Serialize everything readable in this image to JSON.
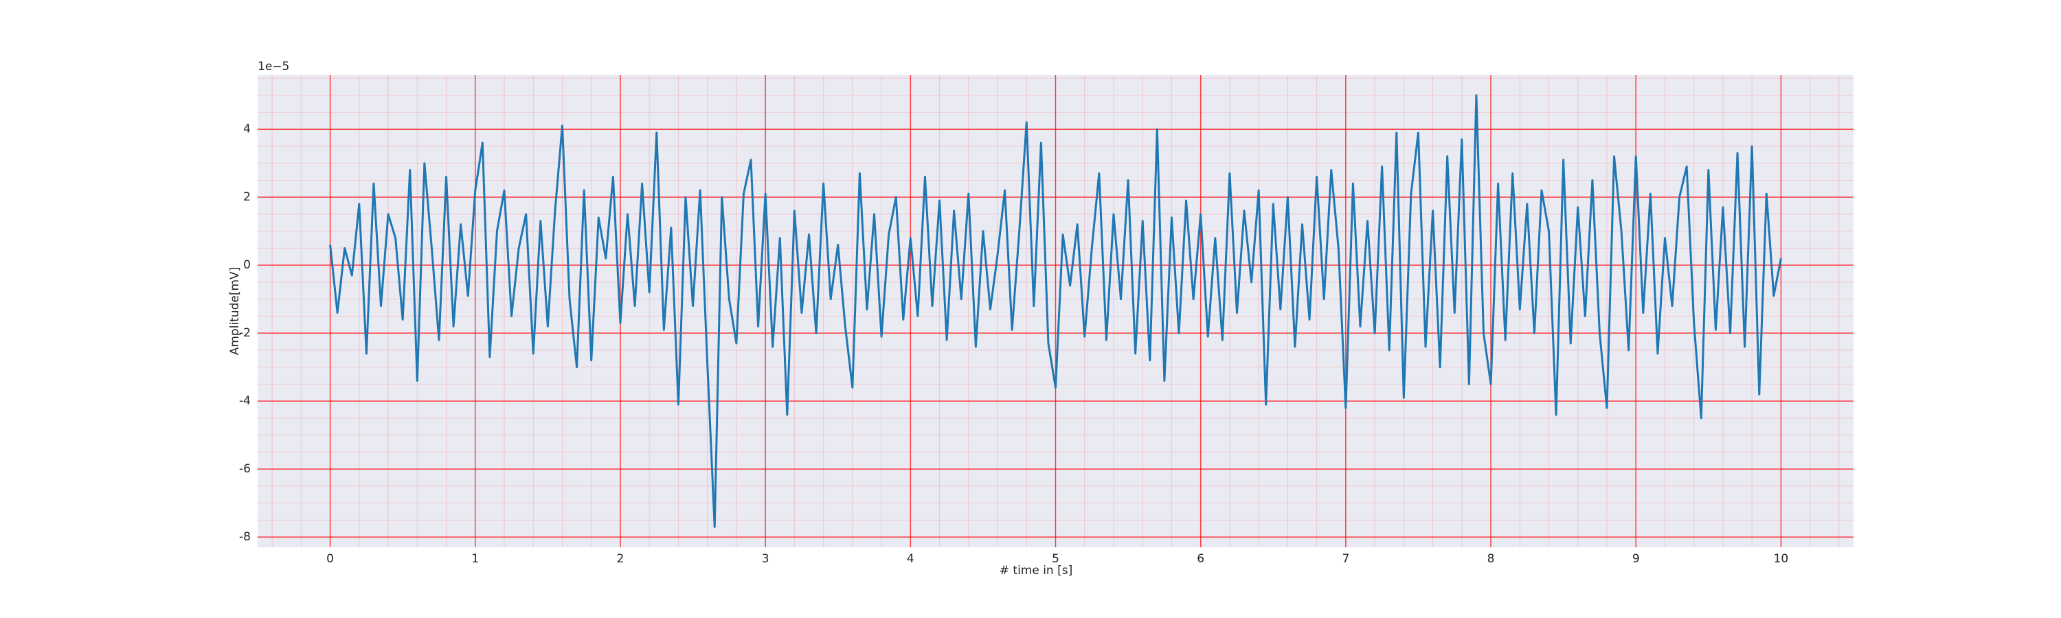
{
  "chart_data": {
    "type": "line",
    "x_label": "# time in [s]",
    "y_label": "Amplitude[mV]",
    "y_offset_label": "1e−5",
    "xlim": [
      -0.5,
      10.5
    ],
    "ylim": [
      -8.3,
      5.6
    ],
    "xticks": [
      0,
      1,
      2,
      3,
      4,
      5,
      6,
      7,
      8,
      9,
      10
    ],
    "yticks": [
      -8,
      -6,
      -4,
      -2,
      0,
      2,
      4
    ],
    "grid": true,
    "minor_grid": true,
    "grid_color": "#ff0000",
    "background": "#eaeaf2",
    "x": [
      0,
      0.05,
      0.1,
      0.15,
      0.2,
      0.25,
      0.3,
      0.35,
      0.4,
      0.45,
      0.5,
      0.55,
      0.6,
      0.65,
      0.7,
      0.75,
      0.8,
      0.85,
      0.9,
      0.95,
      1,
      1.05,
      1.1,
      1.15,
      1.2,
      1.25,
      1.3,
      1.35,
      1.4,
      1.45,
      1.5,
      1.55,
      1.6,
      1.65,
      1.7,
      1.75,
      1.8,
      1.85,
      1.9,
      1.95,
      2,
      2.05,
      2.1,
      2.15,
      2.2,
      2.25,
      2.3,
      2.35,
      2.4,
      2.45,
      2.5,
      2.55,
      2.6,
      2.65,
      2.7,
      2.75,
      2.8,
      2.85,
      2.9,
      2.95,
      3,
      3.05,
      3.1,
      3.15,
      3.2,
      3.25,
      3.3,
      3.35,
      3.4,
      3.45,
      3.5,
      3.55,
      3.6,
      3.65,
      3.7,
      3.75,
      3.8,
      3.85,
      3.9,
      3.95,
      4,
      4.05,
      4.1,
      4.15,
      4.2,
      4.25,
      4.3,
      4.35,
      4.4,
      4.45,
      4.5,
      4.55,
      4.6,
      4.65,
      4.7,
      4.75,
      4.8,
      4.85,
      4.9,
      4.95,
      5,
      5.05,
      5.1,
      5.15,
      5.2,
      5.25,
      5.3,
      5.35,
      5.4,
      5.45,
      5.5,
      5.55,
      5.6,
      5.65,
      5.7,
      5.75,
      5.8,
      5.85,
      5.9,
      5.95,
      6,
      6.05,
      6.1,
      6.15,
      6.2,
      6.25,
      6.3,
      6.35,
      6.4,
      6.45,
      6.5,
      6.55,
      6.6,
      6.65,
      6.7,
      6.75,
      6.8,
      6.85,
      6.9,
      6.95,
      7,
      7.05,
      7.1,
      7.15,
      7.2,
      7.25,
      7.3,
      7.35,
      7.4,
      7.45,
      7.5,
      7.55,
      7.6,
      7.65,
      7.7,
      7.75,
      7.8,
      7.85,
      7.9,
      7.95,
      8,
      8.05,
      8.1,
      8.15,
      8.2,
      8.25,
      8.3,
      8.35,
      8.4,
      8.45,
      8.5,
      8.55,
      8.6,
      8.65,
      8.7,
      8.75,
      8.8,
      8.85,
      8.9,
      8.95,
      9,
      9.05,
      9.1,
      9.15,
      9.2,
      9.25,
      9.3,
      9.35,
      9.4,
      9.45,
      9.5,
      9.55,
      9.6,
      9.65,
      9.7,
      9.75,
      9.8,
      9.85,
      9.9,
      9.95,
      10
    ],
    "series": [
      {
        "color": "#1f77b4",
        "values": [
          0.6,
          -1.4,
          0.5,
          -0.3,
          1.8,
          -2.6,
          2.4,
          -1.2,
          1.5,
          0.8,
          -1.6,
          2.8,
          -3.4,
          3.0,
          0.5,
          -2.2,
          2.6,
          -1.8,
          1.2,
          -0.9,
          2.2,
          3.6,
          -2.7,
          1.0,
          2.2,
          -1.5,
          0.5,
          1.5,
          -2.6,
          1.3,
          -1.8,
          1.6,
          4.1,
          -1.0,
          -3.0,
          2.2,
          -2.8,
          1.4,
          0.2,
          2.6,
          -1.7,
          1.5,
          -1.2,
          2.4,
          -0.8,
          3.9,
          -1.9,
          1.1,
          -4.1,
          2.0,
          -1.2,
          2.2,
          -2.9,
          -7.7,
          2.0,
          -1.0,
          -2.3,
          2.1,
          3.1,
          -1.8,
          2.1,
          -2.4,
          0.8,
          -4.4,
          1.6,
          -1.4,
          0.9,
          -2.0,
          2.4,
          -1.0,
          0.6,
          -1.8,
          -3.6,
          2.7,
          -1.3,
          1.5,
          -2.1,
          0.9,
          2.0,
          -1.6,
          0.8,
          -1.5,
          2.6,
          -1.2,
          1.9,
          -2.2,
          1.6,
          -1.0,
          2.1,
          -2.4,
          1.0,
          -1.3,
          0.3,
          2.2,
          -1.9,
          1.0,
          4.2,
          -1.2,
          3.6,
          -2.3,
          -3.6,
          0.9,
          -0.6,
          1.2,
          -2.1,
          0.5,
          2.7,
          -2.2,
          1.5,
          -1.0,
          2.5,
          -2.6,
          1.3,
          -2.8,
          4.0,
          -3.4,
          1.4,
          -2.0,
          1.9,
          -1.0,
          1.5,
          -2.1,
          0.8,
          -2.2,
          2.7,
          -1.4,
          1.6,
          -0.5,
          2.2,
          -4.1,
          1.8,
          -1.3,
          2.0,
          -2.4,
          1.2,
          -1.6,
          2.6,
          -1.0,
          2.8,
          0.5,
          -4.2,
          2.4,
          -1.8,
          1.3,
          -2.0,
          2.9,
          -2.5,
          3.9,
          -3.9,
          2.1,
          3.9,
          -2.4,
          1.6,
          -3.0,
          3.2,
          -1.4,
          3.7,
          -3.5,
          5.0,
          -2.0,
          -3.5,
          2.4,
          -2.2,
          2.7,
          -1.3,
          1.8,
          -2.0,
          2.2,
          1.0,
          -4.4,
          3.1,
          -2.3,
          1.7,
          -1.5,
          2.5,
          -2.0,
          -4.2,
          3.2,
          1.0,
          -2.5,
          3.2,
          -1.4,
          2.1,
          -2.6,
          0.8,
          -1.2,
          2.0,
          2.9,
          -1.7,
          -4.5,
          2.8,
          -1.9,
          1.7,
          -2.0,
          3.3,
          -2.4,
          3.5,
          -3.8,
          2.1,
          -0.9,
          0.2
        ]
      }
    ]
  }
}
